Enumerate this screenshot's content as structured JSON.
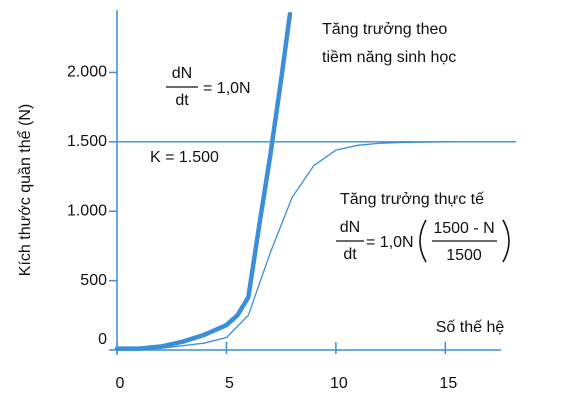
{
  "chart_data": {
    "type": "line",
    "y_label": "Kích thước quần thể (N)",
    "x_label": "Số thế hệ",
    "xlim": [
      0,
      18
    ],
    "ylim": [
      0,
      2450
    ],
    "xticks": [
      0,
      5,
      10,
      15
    ],
    "yticks": [
      0,
      500,
      {
        "value": 1000,
        "label": "1.000"
      },
      {
        "value": 1500,
        "label": "1.500"
      },
      {
        "value": 2000,
        "label": "2.000"
      }
    ],
    "k_line": 1500,
    "color": "#3b8fd8",
    "series": [
      {
        "name": "Tăng trưởng theo tiềm năng sinh học",
        "color": "#3b8fd8",
        "x": [
          0,
          1,
          2,
          3,
          4,
          5,
          5.5,
          6,
          6.5,
          7,
          7.5,
          7.9
        ],
        "values": [
          10,
          10,
          25,
          60,
          110,
          180,
          250,
          380,
          900,
          1400,
          1950,
          2420
        ]
      },
      {
        "name": "Tăng trưởng thực tế",
        "color": "#3b8fd8",
        "x": [
          0,
          2,
          4,
          5,
          6,
          7,
          8,
          9,
          10,
          11,
          12,
          13,
          15,
          15.5
        ],
        "values": [
          10,
          12,
          50,
          90,
          250,
          700,
          1100,
          1330,
          1440,
          1475,
          1490,
          1495,
          1500,
          1500
        ]
      }
    ],
    "annotations": {
      "potential": [
        "Tăng trưởng theo",
        "tiềm năng sinh học"
      ],
      "actual": "Tăng trưởng thực tế",
      "k_label": "K = 1.500",
      "formula1": {
        "num": "dN",
        "den": "dt",
        "rhs": "= 1,0N"
      },
      "formula2": {
        "num": "dN",
        "den": "dt",
        "rhs": "= 1,0N",
        "inner_num": "1500 - N",
        "inner_den": "1500"
      }
    }
  }
}
